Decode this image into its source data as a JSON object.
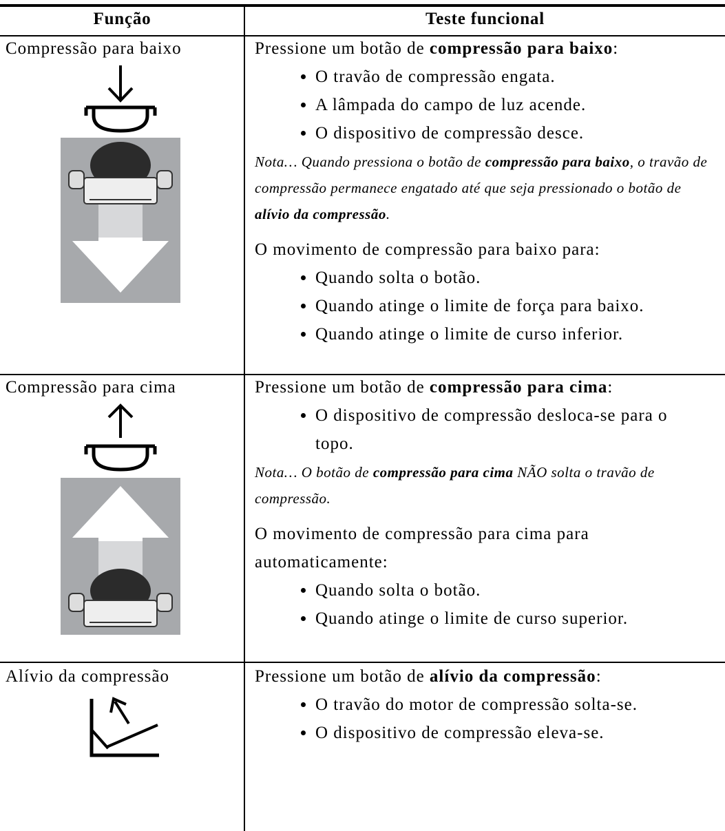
{
  "header": {
    "col1": "Função",
    "col2": "Teste funcional"
  },
  "rows": [
    {
      "function": "Compressão para baixo",
      "intro": [
        {
          "text": "Pressione um botão de "
        },
        {
          "text": "compressão para baixo",
          "bold": true
        },
        {
          "text": ":"
        }
      ],
      "bullets": [
        "O travão de compressão engata.",
        "A lâmpada do campo de luz acende.",
        "O dispositivo de compressão desce."
      ],
      "note": [
        {
          "text": "Nota… Quando pressiona o botão de "
        },
        {
          "text": "compressão para baixo",
          "bold": true
        },
        {
          "text": ", o travão de compressão permanece engatado até que seja pressionado o botão de "
        },
        {
          "text": "alívio da compressão",
          "bold": true
        },
        {
          "text": "."
        }
      ],
      "stop_text": "O movimento de compressão para baixo para:",
      "stop_bullets": [
        "Quando solta o botão.",
        "Quando atinge o limite de força para baixo.",
        "Quando atinge o limite de curso inferior."
      ]
    },
    {
      "function": "Compressão para cima",
      "intro": [
        {
          "text": "Pressione um botão de "
        },
        {
          "text": "compressão para cima",
          "bold": true
        },
        {
          "text": ":"
        }
      ],
      "bullets": [
        "O dispositivo de compressão desloca-se para o topo."
      ],
      "note": [
        {
          "text": "Nota… O botão de "
        },
        {
          "text": "compressão para cima",
          "bold": true
        },
        {
          "text": " NÃO solta o travão de compressão."
        }
      ],
      "stop_text": "O movimento de compressão para cima para automaticamente:",
      "stop_bullets": [
        "Quando solta o botão.",
        "Quando atinge o limite de curso superior."
      ]
    },
    {
      "function": "Alívio da compressão",
      "intro": [
        {
          "text": "Pressione um botão de "
        },
        {
          "text": "alívio da compressão",
          "bold": true
        },
        {
          "text": ":"
        }
      ],
      "bullets": [
        "O travão do motor de compressão solta-se.",
        "O dispositivo de compressão eleva-se."
      ]
    }
  ]
}
